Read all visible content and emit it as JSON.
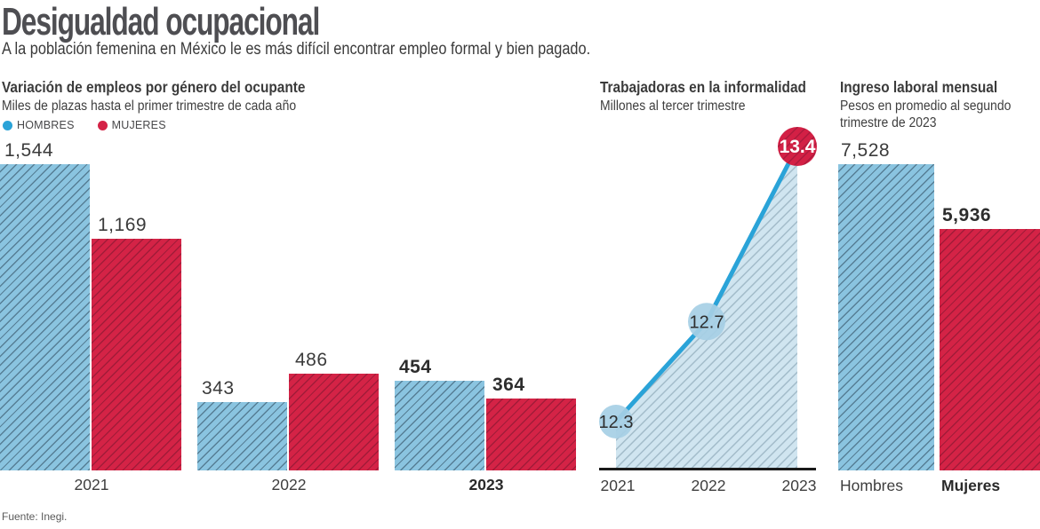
{
  "header": {
    "title": "Desigualdad ocupacional",
    "subtitle": "A la población femenina en México le es más difícil encontrar empleo formal y bien pagado."
  },
  "source": "Fuente: Inegi.",
  "colors": {
    "men_fill": "#8AC4E0",
    "men_hatch": "#567E95",
    "women_fill": "#D42346",
    "women_hatch": "#A11C39",
    "line": "#2AA3D8",
    "area_fill": "#D0E5F0",
    "area_hatch": "#A3BCCA",
    "point_fill": "#A6CFE5",
    "badge_fill": "#D32045",
    "badge_hatch": "#AA1A3C",
    "axis": "#1A1A1A"
  },
  "chart_data": [
    {
      "id": "jobs",
      "type": "bar",
      "title": "Variación de empleos por género del ocupante",
      "subtitle": "Miles de plazas hasta el primer trimestre de cada año",
      "legend": [
        {
          "label": "HOMBRES",
          "color": "#2AA3D8"
        },
        {
          "label": "MUJERES",
          "color": "#D42346"
        }
      ],
      "categories": [
        "2021",
        "2022",
        "2023"
      ],
      "category_emphasis": [
        false,
        false,
        true
      ],
      "series": [
        {
          "name": "HOMBRES",
          "values": [
            1544,
            343,
            454
          ],
          "labels": [
            "1,544",
            "343",
            "454"
          ],
          "label_bold": [
            false,
            false,
            true
          ]
        },
        {
          "name": "MUJERES",
          "values": [
            1169,
            486,
            364
          ],
          "labels": [
            "1,169",
            "486",
            "364"
          ],
          "label_bold": [
            false,
            false,
            true
          ]
        }
      ],
      "ylim": [
        0,
        1600
      ],
      "ylabel": "Miles de plazas"
    },
    {
      "id": "informality",
      "type": "area",
      "title": "Trabajadoras en la informalidad",
      "subtitle": "Millones al tercer trimestre",
      "x": [
        "2021",
        "2022",
        "2023"
      ],
      "values": [
        12.3,
        12.7,
        13.4
      ],
      "labels": [
        "12.3",
        "12.7",
        "13.4"
      ],
      "highlight_index": 2,
      "ylabel": "Millones"
    },
    {
      "id": "income",
      "type": "bar",
      "title": "Ingreso laboral mensual",
      "subtitle": "Pesos en promedio al segundo trimestre de 2023",
      "categories": [
        "Hombres",
        "Mujeres"
      ],
      "category_emphasis": [
        false,
        true
      ],
      "values": [
        7528,
        5936
      ],
      "labels": [
        "7,528",
        "5,936"
      ],
      "label_bold": [
        false,
        true
      ],
      "ylim": [
        0,
        8000
      ],
      "ylabel": "Pesos"
    }
  ]
}
